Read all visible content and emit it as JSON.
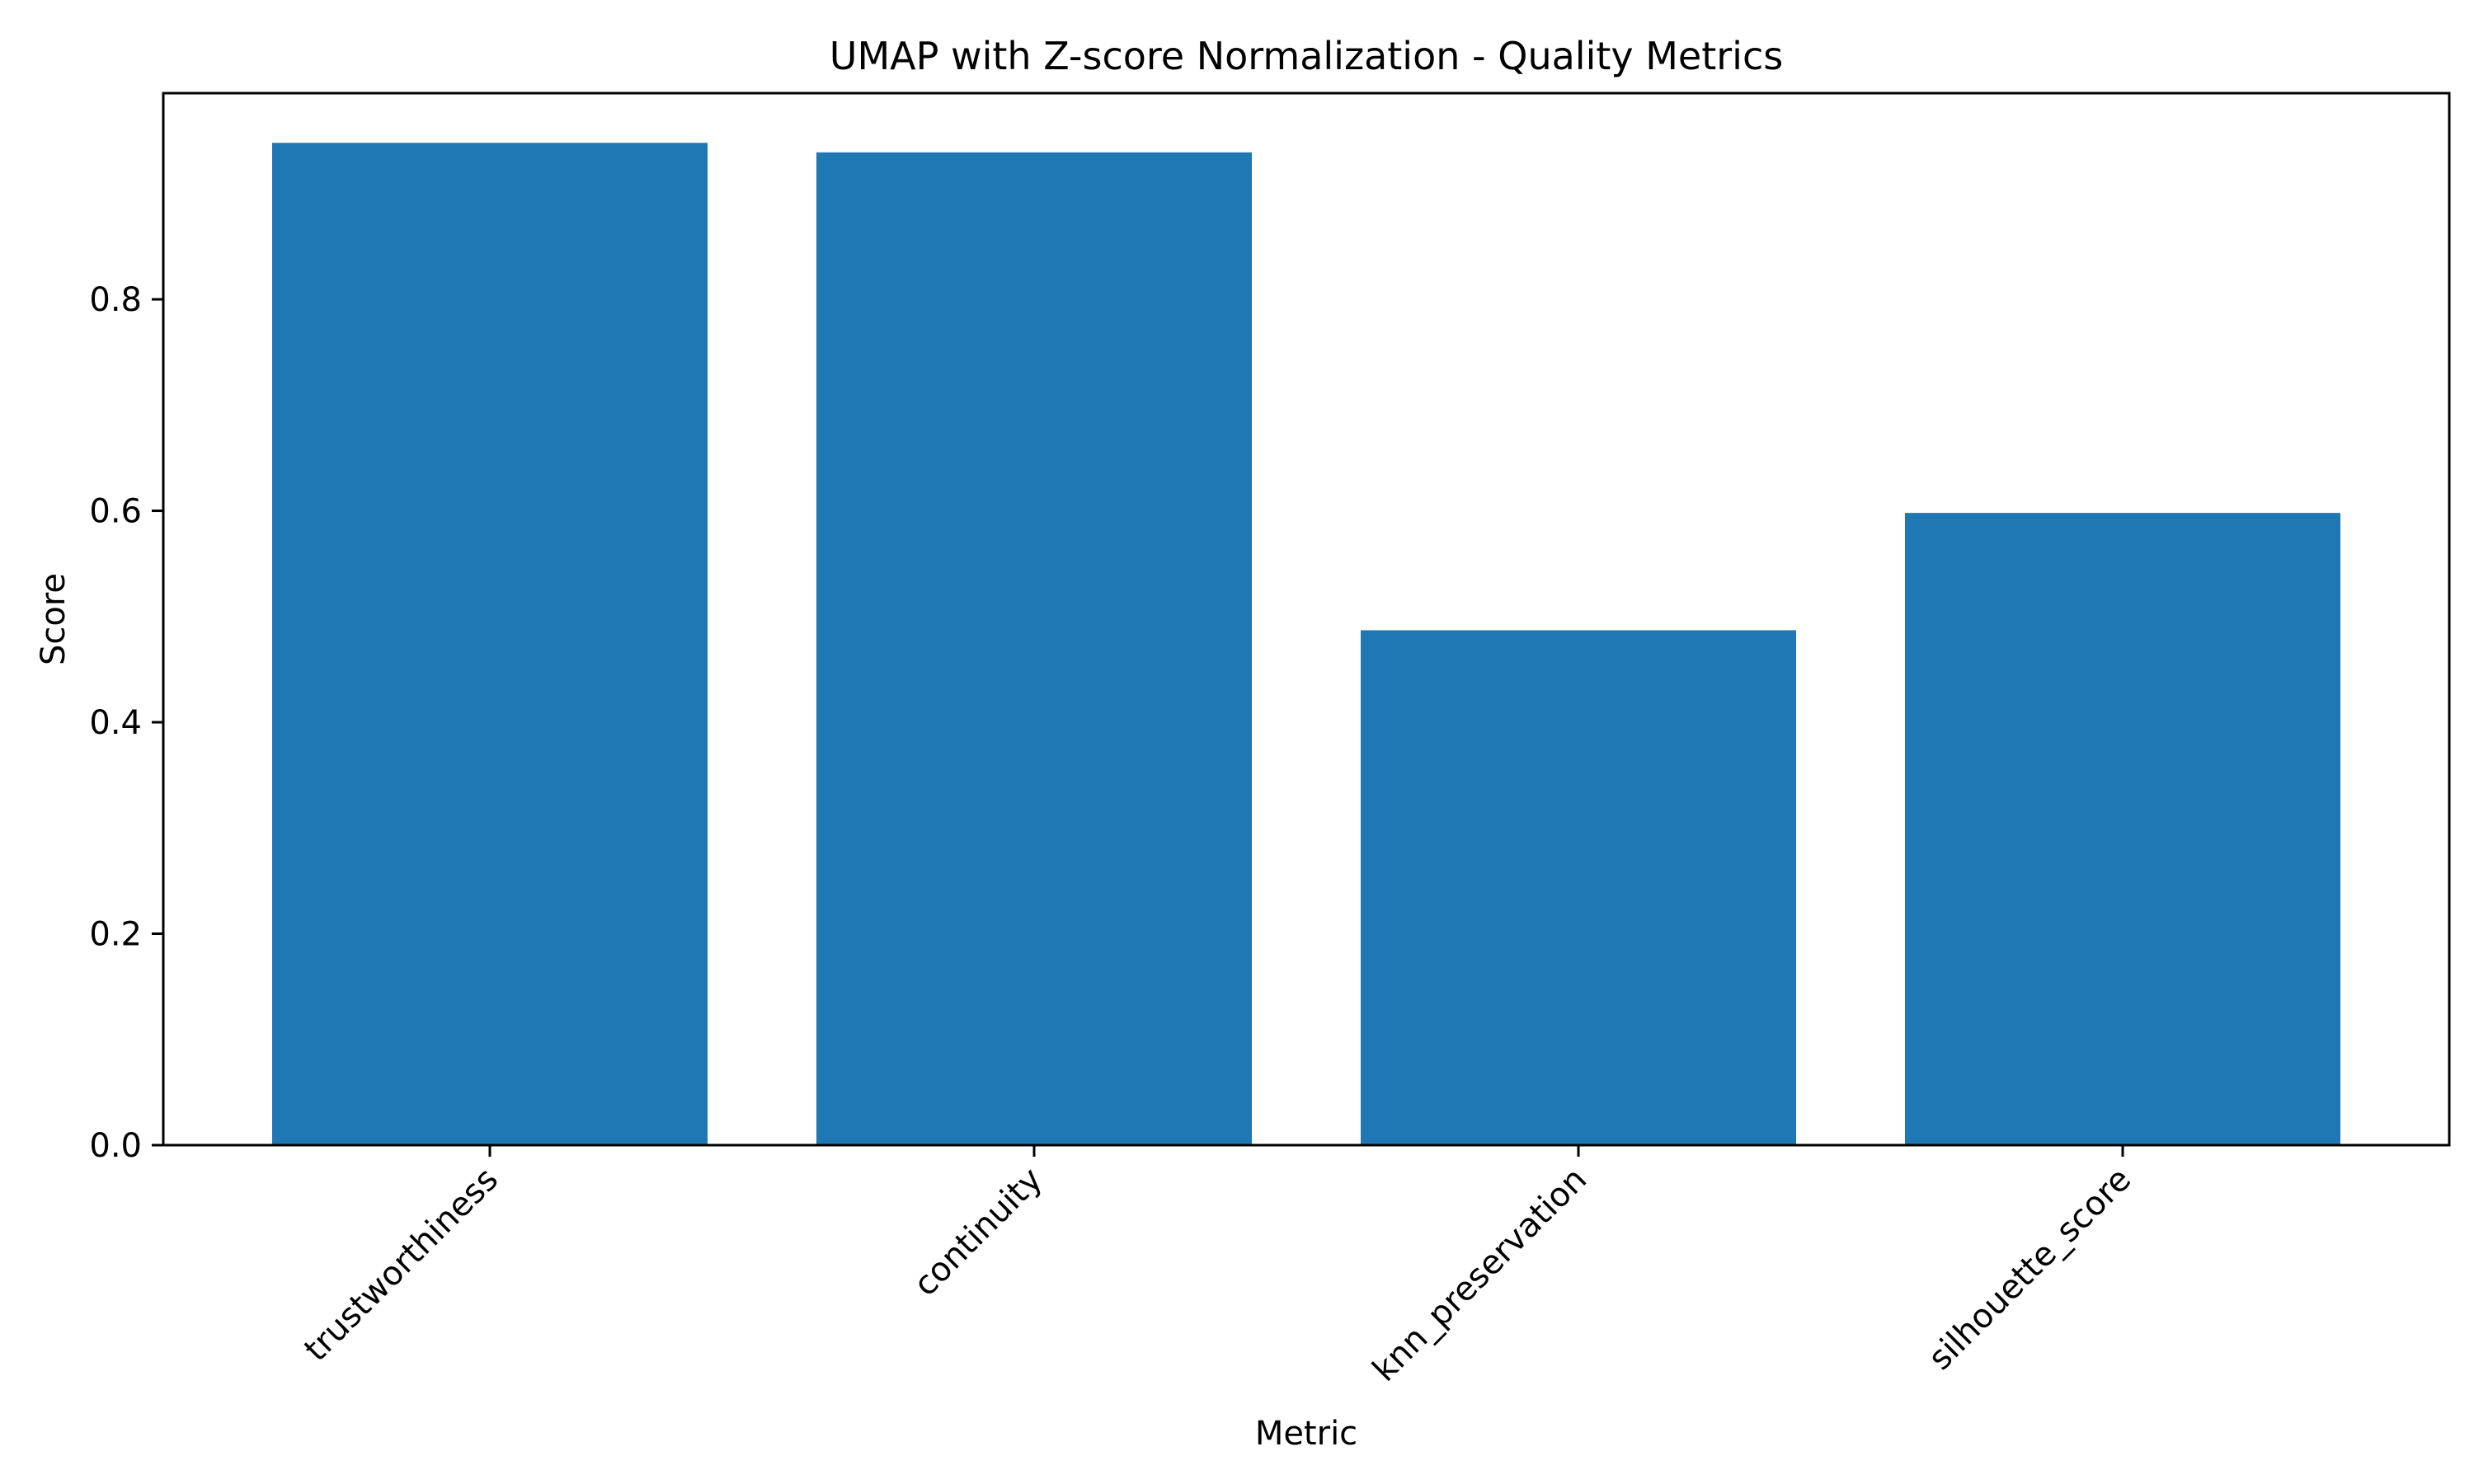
{
  "chart_data": {
    "type": "bar",
    "title": "UMAP with Z-score Normalization - Quality Metrics",
    "xlabel": "Metric",
    "ylabel": "Score",
    "categories": [
      "trustworthiness",
      "continuity",
      "knn_preservation",
      "silhouette_score"
    ],
    "values": [
      0.948,
      0.939,
      0.487,
      0.598
    ],
    "ylim": [
      0,
      0.995
    ],
    "yticks": [
      0.0,
      0.2,
      0.4,
      0.6,
      0.8
    ],
    "ytick_labels": [
      "0.0",
      "0.2",
      "0.4",
      "0.6",
      "0.8"
    ],
    "bar_color": "#1f77b4",
    "grid": false,
    "legend": "none"
  }
}
